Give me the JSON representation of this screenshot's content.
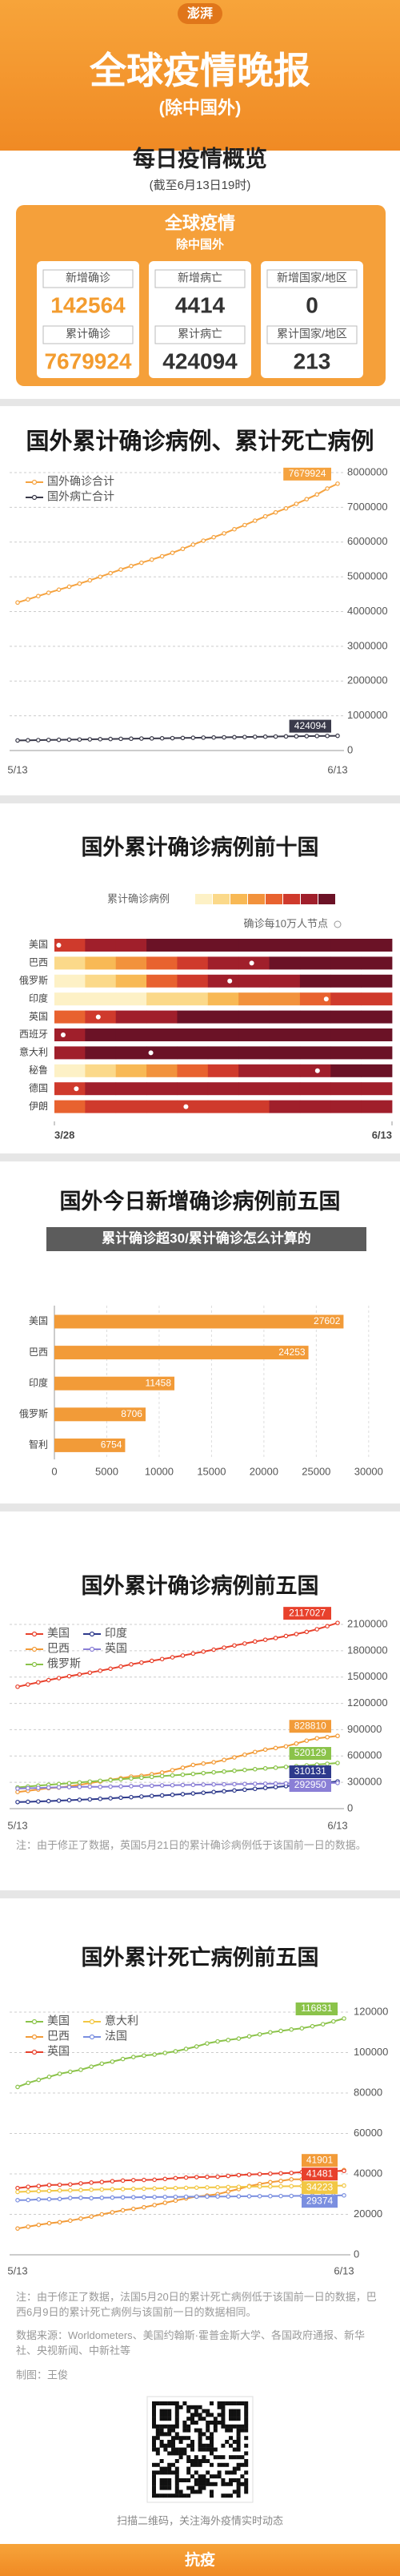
{
  "header": {
    "logo": "澎湃",
    "title": "全球疫情晚报",
    "subtitle": "(除中国外)"
  },
  "overview": {
    "title": "每日疫情概览",
    "timestamp": "(截至6月13日19时)",
    "box_title": "全球疫情",
    "box_subtitle": "除中国外",
    "stats": [
      {
        "label": "新增确诊",
        "value": 142564
      },
      {
        "label": "新增病亡",
        "value": 4414
      },
      {
        "label": "新增国家/地区",
        "value": 0
      },
      {
        "label": "累计确诊",
        "value": 7679924
      },
      {
        "label": "累计病亡",
        "value": 424094
      },
      {
        "label": "累计国家/地区",
        "value": 213
      }
    ]
  },
  "chart_data": [
    {
      "type": "line",
      "title": "国外累计确诊病例、累计死亡病例",
      "categories": [
        "5/13",
        null,
        null,
        null,
        null,
        null,
        null,
        null,
        null,
        null,
        null,
        null,
        null,
        null,
        null,
        null,
        null,
        null,
        null,
        null,
        null,
        null,
        null,
        null,
        null,
        null,
        null,
        null,
        null,
        null,
        null,
        "6/13"
      ],
      "series": [
        {
          "name": "国外确诊合计",
          "color": "#f5a340",
          "values": [
            4260000,
            4350000,
            4445000,
            4540000,
            4630000,
            4715000,
            4805000,
            4900000,
            5000000,
            5105000,
            5210000,
            5310000,
            5405000,
            5495000,
            5590000,
            5690000,
            5805000,
            5925000,
            6040000,
            6140000,
            6250000,
            6370000,
            6490000,
            6615000,
            6740000,
            6855000,
            6970000,
            7100000,
            7235000,
            7370000,
            7540000,
            7679924
          ]
        },
        {
          "name": "国外病亡合计",
          "color": "#3a3a4a",
          "values": [
            290000,
            295000,
            300000,
            305000,
            309000,
            313000,
            317000,
            322000,
            327000,
            332000,
            337000,
            341000,
            345000,
            349000,
            353000,
            357000,
            362000,
            367000,
            372000,
            376000,
            380000,
            384000,
            389000,
            394000,
            399000,
            403000,
            407000,
            410000,
            414000,
            418000,
            421000,
            424094
          ]
        }
      ],
      "ylim": [
        0,
        8000000
      ],
      "yticks": [
        0,
        1000000,
        2000000,
        3000000,
        4000000,
        5000000,
        6000000,
        7000000,
        8000000
      ],
      "grid": true,
      "legend": "top-left",
      "end_labels": true
    },
    {
      "type": "heatmap",
      "title": "国外累计确诊病例前十国",
      "legend_title": "累计确诊病例",
      "node_label": "确诊每10万人节点",
      "colors": [
        "#fdf1c6",
        "#fbd98a",
        "#f8b955",
        "#f2923c",
        "#e8622f",
        "#cf3a2c",
        "#a01f2b",
        "#6b1226"
      ],
      "categories": [
        "美国",
        "巴西",
        "俄罗斯",
        "印度",
        "英国",
        "西班牙",
        "意大利",
        "秘鲁",
        "德国",
        "伊朗"
      ],
      "values": [
        [
          5,
          6,
          6,
          7,
          7,
          7,
          7,
          7,
          7,
          7,
          7
        ],
        [
          1,
          2,
          3,
          4,
          5,
          6,
          6,
          7,
          7,
          7,
          7
        ],
        [
          0,
          1,
          2,
          4,
          5,
          6,
          6,
          6,
          7,
          7,
          7
        ],
        [
          0,
          0,
          0,
          1,
          1,
          2,
          3,
          3,
          4,
          5,
          5
        ],
        [
          4,
          5,
          6,
          6,
          7,
          7,
          7,
          7,
          7,
          7,
          7
        ],
        [
          6,
          7,
          7,
          7,
          7,
          7,
          7,
          7,
          7,
          7,
          7
        ],
        [
          6,
          7,
          7,
          7,
          7,
          7,
          7,
          7,
          7,
          7,
          7
        ],
        [
          0,
          1,
          2,
          3,
          4,
          5,
          6,
          6,
          6,
          7,
          7
        ],
        [
          5,
          6,
          6,
          6,
          6,
          6,
          6,
          6,
          6,
          6,
          6
        ],
        [
          4,
          5,
          5,
          5,
          5,
          5,
          5,
          6,
          6,
          6,
          6
        ]
      ],
      "nodes": [
        1,
        45,
        40,
        62,
        10,
        2,
        22,
        60,
        5,
        30
      ],
      "xlim": [
        0,
        77
      ],
      "xticks": [
        {
          "value": 0,
          "label": "3/28"
        },
        {
          "value": 77,
          "label": "6/13"
        }
      ]
    },
    {
      "type": "hbar",
      "title": "国外今日新增确诊病例前五国",
      "banner": "累计确诊超30/累计确诊怎么计算的",
      "categories": [
        "美国",
        "巴西",
        "印度",
        "俄罗斯",
        "智利"
      ],
      "values": [
        27602,
        24253,
        11458,
        8706,
        6754
      ],
      "color": "#f29b38",
      "xlim": [
        0,
        32000
      ],
      "xticks": [
        0,
        5000,
        10000,
        15000,
        20000,
        25000,
        30000
      ],
      "grid": true
    },
    {
      "type": "line",
      "title": "国外累计确诊病例前五国",
      "categories": [
        "5/13",
        null,
        null,
        null,
        null,
        null,
        null,
        null,
        null,
        null,
        null,
        null,
        null,
        null,
        null,
        null,
        null,
        null,
        null,
        null,
        null,
        null,
        null,
        null,
        null,
        null,
        null,
        null,
        null,
        null,
        null,
        "6/13"
      ],
      "series": [
        {
          "name": "美国",
          "color": "#e8412c",
          "values": [
            1390000,
            1415000,
            1440000,
            1465000,
            1488000,
            1510000,
            1530000,
            1550000,
            1572000,
            1595000,
            1620000,
            1645000,
            1665000,
            1685000,
            1705000,
            1725000,
            1745000,
            1768000,
            1790000,
            1812000,
            1835000,
            1860000,
            1882000,
            1905000,
            1925000,
            1945000,
            1968000,
            1990000,
            2015000,
            2045000,
            2080000,
            2117027
          ]
        },
        {
          "name": "巴西",
          "color": "#f29b38",
          "values": [
            190000,
            203000,
            218000,
            234000,
            241000,
            255000,
            271000,
            291000,
            310000,
            330000,
            347000,
            365000,
            374000,
            392000,
            411000,
            438000,
            466000,
            498000,
            514000,
            529000,
            555000,
            584000,
            615000,
            646000,
            673000,
            691000,
            710000,
            742000,
            775000,
            802000,
            815000,
            828810
          ]
        },
        {
          "name": "俄罗斯",
          "color": "#8bc34a",
          "values": [
            242000,
            252000,
            262000,
            272000,
            281000,
            290000,
            299000,
            308000,
            317000,
            326000,
            335000,
            344000,
            353000,
            362000,
            371000,
            379000,
            387000,
            396000,
            405000,
            414000,
            423000,
            432000,
            441000,
            450000,
            459000,
            467000,
            476000,
            485000,
            493000,
            502000,
            511000,
            520129
          ]
        },
        {
          "name": "印度",
          "color": "#2e3a8c",
          "values": [
            75000,
            78000,
            82000,
            86000,
            91000,
            96000,
            101000,
            106000,
            112000,
            118000,
            125000,
            131000,
            138000,
            145000,
            151000,
            158000,
            165000,
            173000,
            181000,
            190000,
            198000,
            207000,
            216000,
            226000,
            236000,
            246000,
            257000,
            266000,
            276000,
            287000,
            298000,
            310131
          ]
        },
        {
          "name": "英国",
          "color": "#8a7fd6",
          "values": [
            229000,
            233000,
            236000,
            240000,
            243000,
            246000,
            248000,
            250000,
            248000,
            251000,
            254000,
            257000,
            259000,
            261000,
            265000,
            267000,
            269000,
            271000,
            274000,
            276000,
            277000,
            279000,
            281000,
            283000,
            284000,
            286000,
            287000,
            288000,
            290000,
            291000,
            292000,
            292950
          ]
        }
      ],
      "ylim": [
        0,
        2100000
      ],
      "yticks": [
        0,
        300000,
        600000,
        900000,
        1200000,
        1500000,
        1800000,
        2100000
      ],
      "grid": true,
      "legend": "top-left",
      "end_labels": true,
      "note": "注：由于修正了数据，英国5月21日的累计确诊病例低于该国前一日的数据。"
    },
    {
      "type": "line",
      "title": "国外累计死亡病例前五国",
      "categories": [
        "5/13",
        null,
        null,
        null,
        null,
        null,
        null,
        null,
        null,
        null,
        null,
        null,
        null,
        null,
        null,
        null,
        null,
        null,
        null,
        null,
        null,
        null,
        null,
        null,
        null,
        null,
        null,
        null,
        null,
        null,
        null,
        "6/13"
      ],
      "series": [
        {
          "name": "美国",
          "color": "#8bc34a",
          "values": [
            83000,
            85000,
            86500,
            88000,
            89500,
            90500,
            91500,
            93000,
            94500,
            95500,
            96800,
            97800,
            98500,
            99000,
            99800,
            100600,
            101800,
            103000,
            104500,
            105500,
            106200,
            106900,
            108000,
            109000,
            110000,
            110700,
            111400,
            112000,
            113000,
            114000,
            115400,
            116831
          ]
        },
        {
          "name": "巴西",
          "color": "#f29b38",
          "values": [
            13000,
            13900,
            14800,
            15600,
            16100,
            16900,
            17900,
            18900,
            20000,
            21000,
            22000,
            22700,
            23500,
            24600,
            25700,
            26800,
            27900,
            28800,
            29300,
            30000,
            31300,
            32500,
            34000,
            35000,
            35900,
            36500,
            37300,
            37300,
            38500,
            39700,
            41000,
            41901
          ]
        },
        {
          "name": "英国",
          "color": "#e8412c",
          "values": [
            33000,
            33600,
            34000,
            34500,
            34600,
            34800,
            35300,
            35700,
            36000,
            36400,
            36700,
            36900,
            37000,
            37100,
            37500,
            37900,
            38200,
            38400,
            38500,
            38600,
            39000,
            39400,
            39700,
            39900,
            40100,
            40300,
            40500,
            40900,
            41100,
            41300,
            41400,
            41481
          ]
        },
        {
          "name": "意大利",
          "color": "#f2c744",
          "values": [
            31100,
            31300,
            31500,
            31600,
            31800,
            31900,
            32000,
            32200,
            32300,
            32400,
            32500,
            32600,
            32700,
            32800,
            32900,
            33000,
            33100,
            33200,
            33300,
            33400,
            33500,
            33600,
            33700,
            33750,
            33800,
            33850,
            33900,
            34000,
            34050,
            34100,
            34170,
            34223
          ]
        },
        {
          "name": "法国",
          "color": "#7b8fe0",
          "values": [
            27000,
            27100,
            27400,
            27500,
            27600,
            28100,
            28200,
            28000,
            28200,
            28300,
            28400,
            28450,
            28500,
            28550,
            28600,
            28650,
            28700,
            28750,
            28800,
            28830,
            28850,
            28900,
            28940,
            28980,
            29020,
            29060,
            29100,
            29150,
            29200,
            29250,
            29320,
            29374
          ]
        }
      ],
      "ylim": [
        0,
        120000
      ],
      "yticks": [
        0,
        20000,
        40000,
        60000,
        80000,
        100000,
        120000
      ],
      "grid": true,
      "legend": "top-left",
      "end_labels": true,
      "note": "注：由于修正了数据，法国5月20日的累计死亡病例低于该国前一日的数据，巴西6月9日的累计死亡病例与该国前一日的数据相同。"
    }
  ],
  "footer": {
    "source": "数据来源：Worldometers、美国约翰斯·霍普金斯大学、各国政府通报、新华社、央视新闻、中新社等",
    "credit": "制图：王俊",
    "qr_caption": "扫描二维码，关注海外疫情实时动态",
    "brand": "抗疫"
  }
}
